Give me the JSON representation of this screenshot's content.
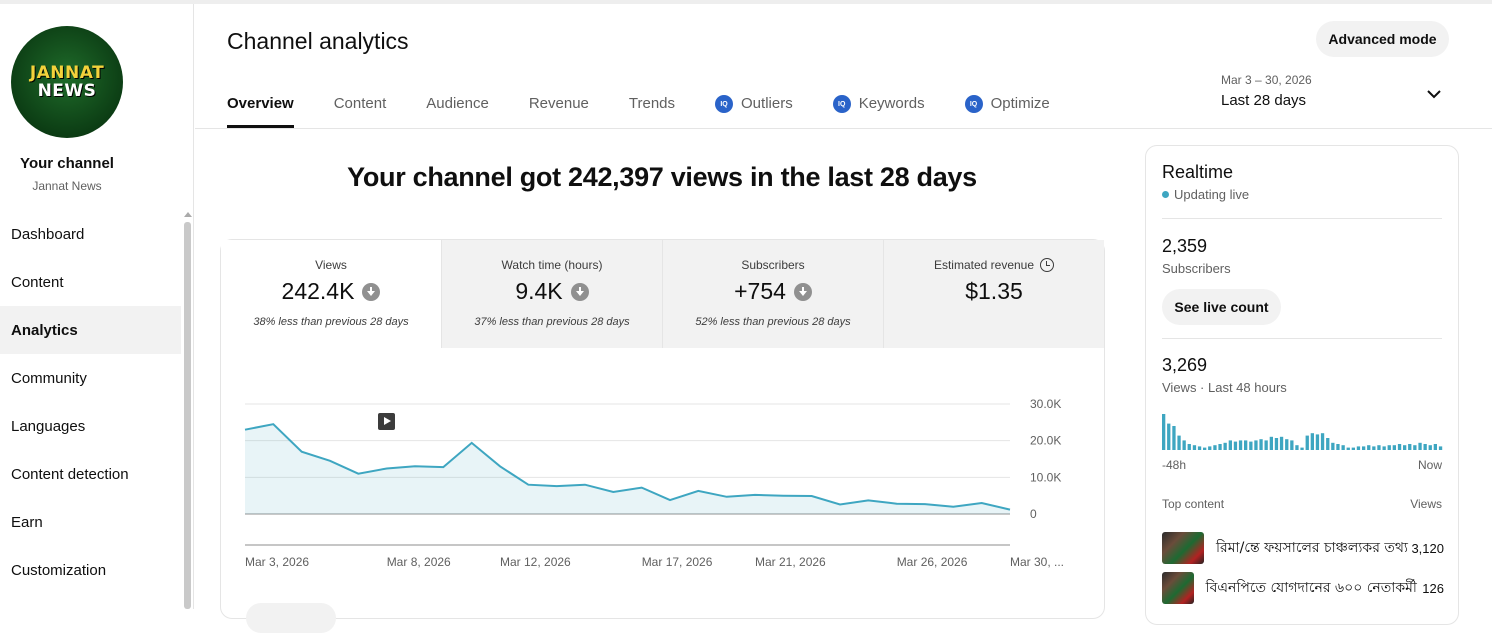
{
  "channel": {
    "logo_line1": "JANNAT",
    "logo_line2": "NEWS",
    "your_channel": "Your channel",
    "name": "Jannat News"
  },
  "sidebar": {
    "items": [
      {
        "label": "Dashboard"
      },
      {
        "label": "Content"
      },
      {
        "label": "Analytics",
        "active": true
      },
      {
        "label": "Community"
      },
      {
        "label": "Languages"
      },
      {
        "label": "Content detection"
      },
      {
        "label": "Earn"
      },
      {
        "label": "Customization"
      }
    ]
  },
  "header": {
    "title": "Channel analytics",
    "advanced_mode": "Advanced mode",
    "date_range": "Mar 3 – 30, 2026",
    "date_label": "Last 28 days"
  },
  "tabs": [
    {
      "label": "Overview",
      "active": true
    },
    {
      "label": "Content"
    },
    {
      "label": "Audience"
    },
    {
      "label": "Revenue"
    },
    {
      "label": "Trends"
    },
    {
      "label": "Outliers",
      "icon": "vidiq-icon"
    },
    {
      "label": "Keywords",
      "icon": "vidiq-icon"
    },
    {
      "label": "Optimize",
      "icon": "vidiq-icon"
    }
  ],
  "tab_icon_text": "IQ",
  "headline": "Your channel got 242,397 views in the last 28 days",
  "metrics": [
    {
      "label": "Views",
      "value": "242.4K",
      "note": "38% less than previous 28 days"
    },
    {
      "label": "Watch time (hours)",
      "value": "9.4K",
      "note": "37% less than previous 28 days"
    },
    {
      "label": "Subscribers",
      "value": "+754",
      "note": "52% less than previous 28 days"
    },
    {
      "label": "Estimated revenue",
      "value": "$1.35",
      "note": ""
    }
  ],
  "chart_data": {
    "type": "area",
    "x_labels": [
      "Mar 3, 2026",
      "Mar 8, 2026",
      "Mar 12, 2026",
      "Mar 17, 2026",
      "Mar 21, 2026",
      "Mar 26, 2026",
      "Mar 30, ..."
    ],
    "x_label_days": [
      0,
      5,
      9,
      14,
      18,
      23,
      27
    ],
    "yticks": [
      "30.0K",
      "20.0K",
      "10.0K",
      "0"
    ],
    "ylim": [
      0,
      30000
    ],
    "series": [
      {
        "values": [
          23000,
          24500,
          17000,
          14500,
          11000,
          12400,
          13000,
          12800,
          19400,
          13000,
          8000,
          7600,
          8000,
          6000,
          7200,
          3800,
          6300,
          4700,
          5200,
          5000,
          4900,
          2600,
          3700,
          2800,
          2700,
          2000,
          3000,
          1200
        ],
        "color": "#3ea6c1"
      }
    ],
    "grid": true
  },
  "realtime": {
    "title": "Realtime",
    "status": "Updating live",
    "subscribers_value": "2,359",
    "subscribers_label": "Subscribers",
    "see_live_count": "See live count",
    "views_value": "3,269",
    "views_label": "Views · Last 48 hours",
    "axis_start": "-48h",
    "axis_end": "Now",
    "bars": [
      30,
      22,
      20,
      12,
      8,
      5,
      4,
      3,
      2,
      3,
      4,
      5,
      6,
      8,
      7,
      8,
      8,
      7,
      8,
      9,
      8,
      11,
      10,
      11,
      9,
      8,
      4,
      2,
      12,
      14,
      13,
      14,
      10,
      6,
      5,
      4,
      2,
      2,
      3,
      3,
      4,
      3,
      4,
      3,
      4,
      4,
      5,
      4,
      5,
      4,
      6,
      5,
      4,
      5,
      3
    ],
    "bar_color": "#3ea6c1",
    "top_content_label": "Top content",
    "views_col_label": "Views",
    "top_content": [
      {
        "title": "রিমা/ন্তে ফয়সালের চাঞ্চল্যকর তথ্য",
        "views": "3,120"
      },
      {
        "title": "বিএনপিতে যোগদানের ৬০০ নেতাকর্মী",
        "views": "126"
      }
    ]
  }
}
